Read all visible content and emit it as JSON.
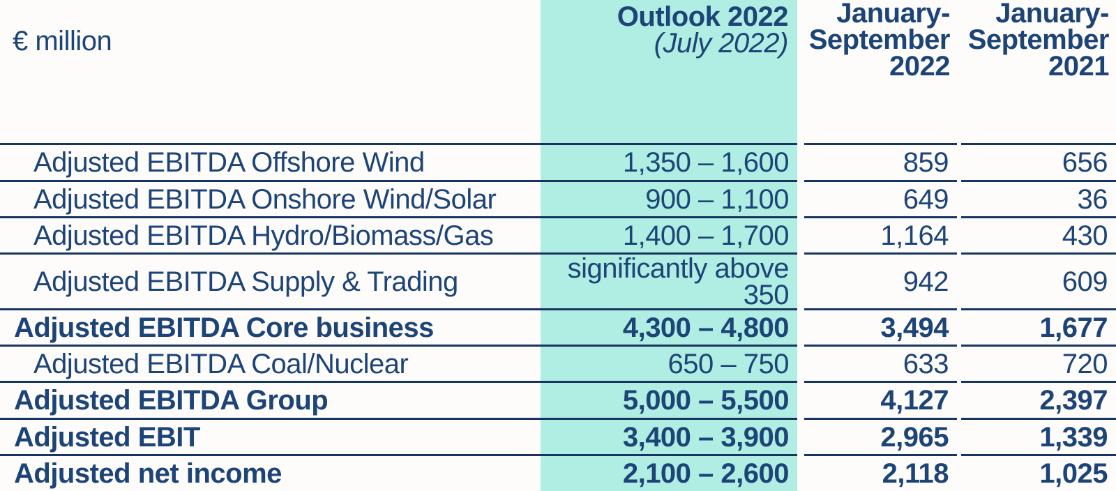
{
  "colors": {
    "background": "#FDFCFA",
    "highlight_column": "#B0EDE2",
    "text": "#1D4477",
    "line": "#17365F"
  },
  "table": {
    "unit_label": "€ million",
    "header": {
      "outlook_title": "Outlook 2022",
      "outlook_subtitle": "(July 2022)",
      "period_2022": "January-\nSeptember\n2022",
      "period_2021": "January-\nSeptember\n2021"
    },
    "rows": [
      {
        "label": "Adjusted EBITDA Offshore Wind",
        "outlook": "1,350 – 1,600",
        "jan_sep_2022": "859",
        "jan_sep_2021": "656"
      },
      {
        "label": "Adjusted EBITDA Onshore Wind/Solar",
        "outlook": "900 – 1,100",
        "jan_sep_2022": "649",
        "jan_sep_2021": "36"
      },
      {
        "label": "Adjusted EBITDA Hydro/Biomass/Gas",
        "outlook": "1,400 – 1,700",
        "jan_sep_2022": "1,164",
        "jan_sep_2021": "430"
      },
      {
        "label": "Adjusted EBITDA Supply & Trading",
        "outlook": "significantly above\n350",
        "jan_sep_2022": "942",
        "jan_sep_2021": "609"
      },
      {
        "label": "Adjusted EBITDA Core business",
        "outlook": "4,300 – 4,800",
        "jan_sep_2022": "3,494",
        "jan_sep_2021": "1,677"
      },
      {
        "label": "Adjusted EBITDA Coal/Nuclear",
        "outlook": "650 – 750",
        "jan_sep_2022": "633",
        "jan_sep_2021": "720"
      },
      {
        "label": "Adjusted EBITDA Group",
        "outlook": "5,000 – 5,500",
        "jan_sep_2022": "4,127",
        "jan_sep_2021": "2,397"
      },
      {
        "label": "Adjusted EBIT",
        "outlook": "3,400 – 3,900",
        "jan_sep_2022": "2,965",
        "jan_sep_2021": "1,339"
      },
      {
        "label": "Adjusted net income",
        "outlook": "2,100 – 2,600",
        "jan_sep_2022": "2,118",
        "jan_sep_2021": "1,025"
      }
    ]
  }
}
